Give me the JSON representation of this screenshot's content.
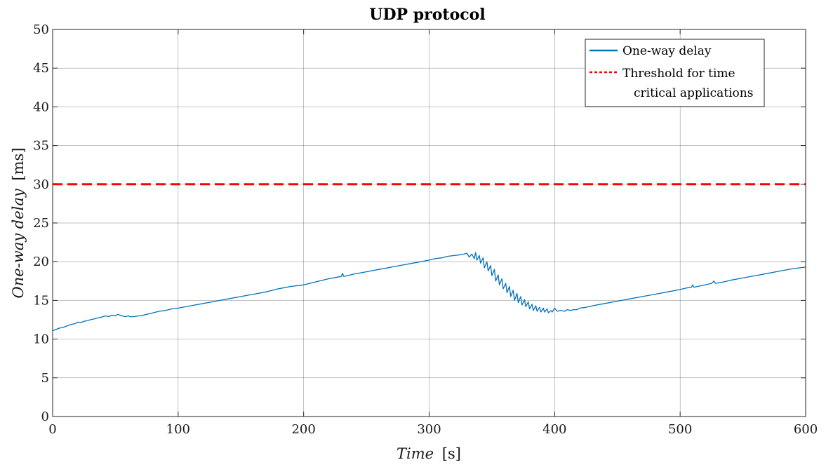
{
  "chart_data": {
    "type": "line",
    "title": "UDP protocol",
    "xlabel": {
      "main": "Time",
      "unit": "[s]"
    },
    "ylabel": {
      "main": "One-way delay",
      "unit": "[ms]"
    },
    "xlim": [
      0,
      600
    ],
    "ylim": [
      0,
      50
    ],
    "x_ticks": [
      0,
      100,
      200,
      300,
      400,
      500,
      600
    ],
    "y_ticks": [
      0,
      5,
      10,
      15,
      20,
      25,
      30,
      35,
      40,
      45,
      50
    ],
    "x_tick_labels": [
      "0",
      "100",
      "200",
      "300",
      "400",
      "500",
      "600"
    ],
    "y_tick_labels": [
      "0",
      "5",
      "10",
      "15",
      "20",
      "25",
      "30",
      "35",
      "40",
      "45",
      "50"
    ],
    "grid": true,
    "legend_position": "top-right",
    "series": [
      {
        "name": "One-way delay",
        "style": "solid",
        "color": "#0072BD",
        "points": [
          [
            0,
            11.1
          ],
          [
            2,
            11.2
          ],
          [
            5,
            11.4
          ],
          [
            8,
            11.5
          ],
          [
            10,
            11.6
          ],
          [
            13,
            11.8
          ],
          [
            15,
            11.9
          ],
          [
            18,
            12.0
          ],
          [
            20,
            12.2
          ],
          [
            22,
            12.1
          ],
          [
            25,
            12.3
          ],
          [
            28,
            12.4
          ],
          [
            30,
            12.5
          ],
          [
            33,
            12.6
          ],
          [
            35,
            12.7
          ],
          [
            38,
            12.8
          ],
          [
            40,
            12.9
          ],
          [
            42,
            13.0
          ],
          [
            45,
            12.9
          ],
          [
            47,
            13.1
          ],
          [
            50,
            13.0
          ],
          [
            52,
            13.2
          ],
          [
            55,
            13.0
          ],
          [
            58,
            12.9
          ],
          [
            60,
            13.0
          ],
          [
            62,
            12.9
          ],
          [
            65,
            12.9
          ],
          [
            68,
            13.0
          ],
          [
            70,
            13.0
          ],
          [
            75,
            13.2
          ],
          [
            80,
            13.4
          ],
          [
            85,
            13.6
          ],
          [
            90,
            13.7
          ],
          [
            95,
            13.9
          ],
          [
            100,
            14.0
          ],
          [
            110,
            14.3
          ],
          [
            120,
            14.6
          ],
          [
            130,
            14.9
          ],
          [
            140,
            15.2
          ],
          [
            150,
            15.5
          ],
          [
            160,
            15.8
          ],
          [
            170,
            16.1
          ],
          [
            180,
            16.5
          ],
          [
            190,
            16.8
          ],
          [
            200,
            17.0
          ],
          [
            210,
            17.4
          ],
          [
            220,
            17.8
          ],
          [
            230,
            18.1
          ],
          [
            231,
            18.5
          ],
          [
            232,
            18.1
          ],
          [
            240,
            18.4
          ],
          [
            250,
            18.7
          ],
          [
            260,
            19.0
          ],
          [
            270,
            19.3
          ],
          [
            280,
            19.6
          ],
          [
            290,
            19.9
          ],
          [
            300,
            20.2
          ],
          [
            305,
            20.4
          ],
          [
            310,
            20.5
          ],
          [
            315,
            20.7
          ],
          [
            320,
            20.8
          ],
          [
            325,
            20.9
          ],
          [
            328,
            21.0
          ],
          [
            330,
            21.1
          ],
          [
            332,
            20.6
          ],
          [
            334,
            21.0
          ],
          [
            336,
            20.4
          ],
          [
            337,
            21.2
          ],
          [
            338,
            20.2
          ],
          [
            340,
            20.8
          ],
          [
            341,
            19.8
          ],
          [
            343,
            20.5
          ],
          [
            344,
            19.2
          ],
          [
            346,
            20.0
          ],
          [
            347,
            18.8
          ],
          [
            349,
            19.5
          ],
          [
            350,
            18.2
          ],
          [
            352,
            19.0
          ],
          [
            353,
            17.5
          ],
          [
            355,
            18.3
          ],
          [
            356,
            17.0
          ],
          [
            358,
            17.8
          ],
          [
            359,
            16.5
          ],
          [
            361,
            17.2
          ],
          [
            362,
            16.0
          ],
          [
            364,
            16.8
          ],
          [
            365,
            15.5
          ],
          [
            367,
            16.3
          ],
          [
            368,
            15.0
          ],
          [
            370,
            15.9
          ],
          [
            371,
            14.7
          ],
          [
            373,
            15.5
          ],
          [
            374,
            14.4
          ],
          [
            376,
            15.1
          ],
          [
            377,
            14.2
          ],
          [
            379,
            14.8
          ],
          [
            380,
            13.9
          ],
          [
            382,
            14.5
          ],
          [
            383,
            13.7
          ],
          [
            385,
            14.3
          ],
          [
            386,
            13.6
          ],
          [
            388,
            14.1
          ],
          [
            389,
            13.5
          ],
          [
            391,
            14.0
          ],
          [
            392,
            13.5
          ],
          [
            394,
            13.9
          ],
          [
            395,
            13.4
          ],
          [
            397,
            13.7
          ],
          [
            398,
            13.5
          ],
          [
            400,
            14.0
          ],
          [
            402,
            13.6
          ],
          [
            405,
            13.7
          ],
          [
            408,
            13.6
          ],
          [
            410,
            13.8
          ],
          [
            413,
            13.7
          ],
          [
            415,
            13.8
          ],
          [
            418,
            13.8
          ],
          [
            420,
            14.0
          ],
          [
            425,
            14.1
          ],
          [
            430,
            14.3
          ],
          [
            440,
            14.6
          ],
          [
            450,
            14.9
          ],
          [
            460,
            15.2
          ],
          [
            470,
            15.5
          ],
          [
            480,
            15.8
          ],
          [
            490,
            16.1
          ],
          [
            500,
            16.4
          ],
          [
            505,
            16.6
          ],
          [
            509,
            16.7
          ],
          [
            510,
            17.0
          ],
          [
            511,
            16.7
          ],
          [
            520,
            17.0
          ],
          [
            525,
            17.2
          ],
          [
            527,
            17.5
          ],
          [
            528,
            17.2
          ],
          [
            535,
            17.4
          ],
          [
            540,
            17.6
          ],
          [
            550,
            17.9
          ],
          [
            560,
            18.2
          ],
          [
            570,
            18.5
          ],
          [
            580,
            18.8
          ],
          [
            590,
            19.1
          ],
          [
            600,
            19.3
          ]
        ]
      },
      {
        "name": "Threshold for time critical applications",
        "legend_lines": [
          "Threshold for time",
          "critical applications"
        ],
        "style": "dashed",
        "color": "#FF0000",
        "points": [
          [
            0,
            30
          ],
          [
            600,
            30
          ]
        ]
      }
    ]
  }
}
